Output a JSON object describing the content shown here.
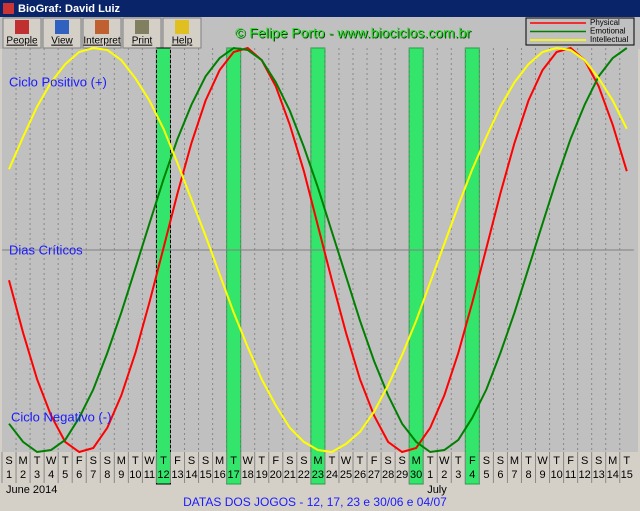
{
  "window": {
    "title": "BioGraf: David Luiz"
  },
  "toolbar": [
    "People",
    "View",
    "Interpret",
    "Print",
    "Help"
  ],
  "watermark": "© Felipe Porto - www.biociclos.com.br",
  "labels": {
    "positive": "Ciclo Positivo (+)",
    "critical": "Dias Críticos",
    "negative": "Ciclo Negativo (-)"
  },
  "status": "DATAS DOS JOGOS - 12, 17, 23 e 30/06 e 04/07",
  "chart_data": {
    "type": "line",
    "categories": [
      "1",
      "2",
      "3",
      "4",
      "5",
      "6",
      "7",
      "8",
      "9",
      "10",
      "11",
      "12",
      "13",
      "14",
      "15",
      "16",
      "17",
      "18",
      "19",
      "20",
      "21",
      "22",
      "23",
      "24",
      "25",
      "26",
      "27",
      "28",
      "29",
      "30",
      "1",
      "2",
      "3",
      "4",
      "5",
      "6",
      "7",
      "8",
      "9",
      "10",
      "11",
      "12",
      "13",
      "14",
      "15"
    ],
    "weekdays": [
      "S",
      "M",
      "T",
      "W",
      "T",
      "F",
      "S",
      "S",
      "M",
      "T",
      "W",
      "T",
      "F",
      "S",
      "S",
      "M",
      "T",
      "W",
      "T",
      "F",
      "S",
      "S",
      "M",
      "T",
      "W",
      "T",
      "F",
      "S",
      "S",
      "M",
      "T",
      "W",
      "T",
      "F",
      "S",
      "S",
      "M",
      "T",
      "W",
      "T",
      "F",
      "S",
      "S",
      "M",
      "T"
    ],
    "months": [
      {
        "label": "June 2014",
        "start": 0
      },
      {
        "label": "July",
        "start": 30
      }
    ],
    "highlighted": [
      11,
      16,
      22,
      29,
      33
    ],
    "ylim": [
      -1,
      1
    ],
    "yticks": [
      0
    ],
    "grid": true,
    "series": [
      {
        "name": "Physical",
        "color": "#ff0000",
        "values": [
          -0.15,
          -0.41,
          -0.64,
          -0.82,
          -0.95,
          -1.0,
          -0.98,
          -0.88,
          -0.72,
          -0.51,
          -0.26,
          0.01,
          0.28,
          0.53,
          0.74,
          0.89,
          0.98,
          1.0,
          0.94,
          0.81,
          0.62,
          0.39,
          0.12,
          -0.15,
          -0.41,
          -0.64,
          -0.82,
          -0.95,
          -1.0,
          -0.98,
          -0.88,
          -0.72,
          -0.51,
          -0.26,
          0.01,
          0.28,
          0.53,
          0.74,
          0.89,
          0.98,
          1.0,
          0.94,
          0.81,
          0.62,
          0.39
        ]
      },
      {
        "name": "Emotional",
        "color": "#008000",
        "values": [
          -0.86,
          -0.95,
          -1.0,
          -0.99,
          -0.94,
          -0.83,
          -0.69,
          -0.51,
          -0.31,
          -0.09,
          0.13,
          0.35,
          0.55,
          0.72,
          0.86,
          0.95,
          1.0,
          0.99,
          0.94,
          0.83,
          0.69,
          0.51,
          0.31,
          0.09,
          -0.13,
          -0.35,
          -0.55,
          -0.72,
          -0.86,
          -0.95,
          -1.0,
          -0.99,
          -0.94,
          -0.83,
          -0.69,
          -0.51,
          -0.31,
          -0.09,
          0.13,
          0.35,
          0.55,
          0.72,
          0.86,
          0.95,
          1.0
        ]
      },
      {
        "name": "Intellectual",
        "color": "#ffff00",
        "values": [
          0.4,
          0.56,
          0.71,
          0.83,
          0.92,
          0.98,
          1.0,
          0.99,
          0.94,
          0.85,
          0.74,
          0.6,
          0.43,
          0.25,
          0.07,
          -0.12,
          -0.31,
          -0.48,
          -0.64,
          -0.77,
          -0.88,
          -0.95,
          -0.99,
          -1.0,
          -0.96,
          -0.9,
          -0.8,
          -0.67,
          -0.52,
          -0.35,
          -0.16,
          0.03,
          0.22,
          0.4,
          0.56,
          0.71,
          0.83,
          0.92,
          0.98,
          1.0,
          0.99,
          0.94,
          0.85,
          0.74,
          0.6
        ]
      }
    ]
  }
}
